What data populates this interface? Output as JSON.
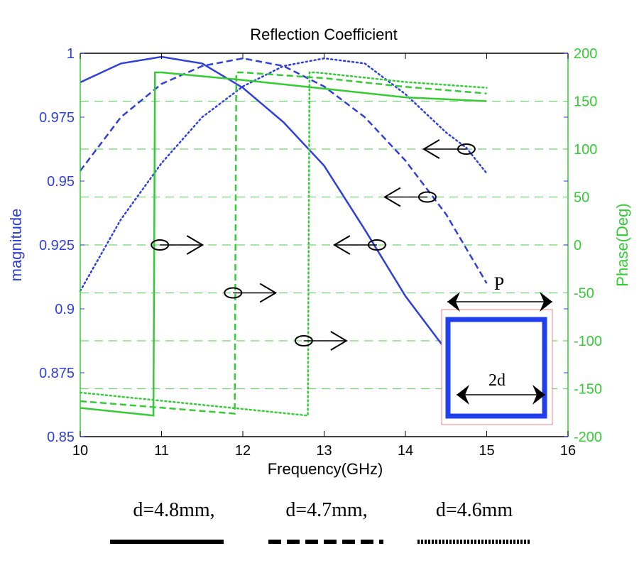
{
  "chart_data": {
    "type": "line",
    "title": "Reflection Coefficient",
    "xlabel": "Frequency(GHz)",
    "ylabel_left": "magnitude",
    "ylabel_right": "Phase(Deg)",
    "xlim": [
      10,
      16
    ],
    "ylim_left": [
      0.85,
      1
    ],
    "ylim_right": [
      -200,
      200
    ],
    "x_ticks": [
      "10",
      "11",
      "12",
      "13",
      "14",
      "15",
      "16"
    ],
    "y_left_ticks": [
      "0.85",
      "0.875",
      "0.9",
      "0.925",
      "0.95",
      "0.975",
      "1"
    ],
    "y_right_ticks": [
      "-200",
      "-150",
      "-100",
      "-50",
      "0",
      "50",
      "100",
      "150",
      "200"
    ],
    "grid": "dashed horizontal at phase ticks",
    "colors": {
      "magnitude": "#2f3fdd",
      "phase": "#33cc33",
      "axis": "#000000"
    },
    "series": [
      {
        "name": "d=4.8mm,",
        "axis": "magnitude",
        "style": "solid",
        "x": [
          10,
          10.5,
          11,
          11.5,
          12,
          12.5,
          13,
          13.5,
          14,
          14.45
        ],
        "y": [
          0.9886,
          0.996,
          0.9986,
          0.996,
          0.9865,
          0.973,
          0.956,
          0.931,
          0.905,
          0.886
        ]
      },
      {
        "name": "d=4.7mm,",
        "axis": "magnitude",
        "style": "dashed",
        "x": [
          10,
          10.5,
          11,
          11.5,
          12,
          12.5,
          13,
          13.5,
          14,
          14.5,
          15
        ],
        "y": [
          0.954,
          0.975,
          0.988,
          0.995,
          0.998,
          0.995,
          0.987,
          0.975,
          0.958,
          0.937,
          0.91
        ]
      },
      {
        "name": "d=4.6mm",
        "axis": "magnitude",
        "style": "dotted",
        "x": [
          10,
          10.5,
          11,
          11.5,
          12,
          12.5,
          13,
          13.5,
          14,
          14.5,
          14.75,
          15
        ],
        "y": [
          0.907,
          0.935,
          0.957,
          0.975,
          0.987,
          0.995,
          0.998,
          0.996,
          0.984,
          0.969,
          0.963,
          0.953
        ]
      },
      {
        "name": "d=4.8mm,",
        "axis": "phase",
        "style": "solid",
        "x": [
          10,
          10.9,
          10.92,
          11,
          12,
          13,
          14,
          15
        ],
        "y": [
          -170,
          -178,
          180,
          180,
          172,
          163,
          154,
          150
        ]
      },
      {
        "name": "d=4.7mm,",
        "axis": "phase",
        "style": "dashed",
        "x": [
          10,
          11.9,
          11.92,
          12,
          13,
          14,
          15
        ],
        "y": [
          -163,
          -176,
          180,
          180,
          174,
          165,
          158
        ]
      },
      {
        "name": "d=4.6mm",
        "axis": "phase",
        "style": "dotted",
        "x": [
          10,
          12.8,
          12.82,
          12.9,
          14,
          15
        ],
        "y": [
          -154,
          -178,
          180,
          180,
          170,
          164
        ]
      }
    ],
    "annotations": {
      "inset_labels": [
        "P",
        "2d"
      ],
      "arrows": [
        {
          "direction": "right",
          "points_to": "phase axis",
          "at_x": 10.98,
          "at_phase": 0
        },
        {
          "direction": "right",
          "points_to": "phase axis",
          "at_x": 11.88,
          "at_phase": -50
        },
        {
          "direction": "right",
          "points_to": "phase axis",
          "at_x": 12.75,
          "at_phase": -100
        },
        {
          "direction": "left",
          "points_to": "magnitude axis",
          "at_x": 14.75,
          "at_phase": 100
        },
        {
          "direction": "left",
          "points_to": "magnitude axis",
          "at_x": 14.27,
          "at_phase": 50
        },
        {
          "direction": "left",
          "points_to": "magnitude axis",
          "at_x": 13.65,
          "at_phase": 0
        }
      ]
    },
    "legend": {
      "placement": "bottom",
      "entries": [
        {
          "label": "d=4.8mm,",
          "style": "solid"
        },
        {
          "label": "d=4.7mm,",
          "style": "dashed"
        },
        {
          "label": "d=4.6mm",
          "style": "dotted"
        }
      ]
    }
  }
}
